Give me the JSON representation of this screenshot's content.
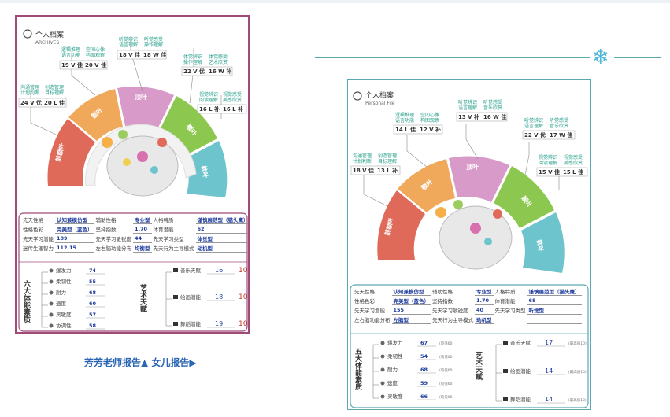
{
  "caption": "芳芳老师报告▲  女儿报告▶",
  "icons": {
    "snowflake": "snowflake-icon"
  },
  "card1": {
    "title": "个人档案",
    "subtitle": "ARCHIVES",
    "lobes": [
      "前额叶",
      "额叶",
      "顶叶",
      "颞叶",
      "枕叶"
    ],
    "lobe_subs": [
      "逻辑推理",
      "操作运动",
      "听觉语言",
      "视觉"
    ],
    "topics": [
      {
        "lines": [
          "沟通管理",
          "计划判断"
        ],
        "score": "24 V 优",
        "score2": "20 L 佳",
        "lines2": [
          "创造管理",
          "目标理解"
        ]
      },
      {
        "lines": [
          "逻辑推理",
          "语言功能"
        ],
        "score": "19 V 佳",
        "score2": "20 V 佳",
        "lines2": [
          "空间心像",
          "构图观察"
        ]
      },
      {
        "lines": [
          "听觉辨识",
          "语言理解"
        ],
        "score": "18 V 佳",
        "score2": "18 W 佳",
        "lines2": [
          "听觉感受",
          "操作理解"
        ]
      },
      {
        "lines": [
          "体觉辨识",
          "操作理解"
        ],
        "score": "22 V 优",
        "score2": "16 W 补",
        "lines2": [
          "体觉感受",
          "艺术欣赏"
        ]
      },
      {
        "lines": [
          "视觉辨识",
          "阅读理解"
        ],
        "score": "16 L 补",
        "score2": "16 L 补",
        "lines2": [
          "视觉感受",
          "美感欣赏"
        ]
      }
    ],
    "info": [
      [
        "先天性格",
        "认知兼模仿型",
        "辅助性格",
        "专业型",
        "人格特质",
        "谨慎展范型（猫头鹰）"
      ],
      [
        "性格色彩",
        "完美型（蓝色）",
        "坚持指数",
        "1.70",
        "体育潜能",
        "62"
      ],
      [
        "先天学习潜能",
        "189",
        "先天学习敏锐度",
        "44",
        "先天学习类型",
        "体觉型"
      ],
      [
        "迷传生理智力",
        "112.15",
        "左右脑功能分布",
        "均衡型",
        "先天行为主导模式",
        "动机型"
      ]
    ],
    "six_title": "六大体能素质",
    "six": [
      [
        "爆发力",
        "74"
      ],
      [
        "柔韧性",
        "55"
      ],
      [
        "耐力",
        "68"
      ],
      [
        "速度",
        "60"
      ],
      [
        "灵敏度",
        "57"
      ],
      [
        "协调性",
        "58"
      ]
    ],
    "art_title": "艺术天赋",
    "art": [
      [
        "音乐天赋",
        "16",
        "10"
      ],
      [
        "绘画潜能",
        "18",
        "10"
      ],
      [
        "舞蹈潜能",
        "19",
        "10"
      ]
    ]
  },
  "card2": {
    "title": "个人档案",
    "subtitle": "Personal File",
    "topics": [
      {
        "lines": [
          "沟通管理",
          "计划判断"
        ],
        "score": "18 V 佳",
        "score2": "13 L 补",
        "lines2": [
          "创造管理",
          "目标理解"
        ]
      },
      {
        "lines": [
          "逻辑推理",
          "语言功能"
        ],
        "score": "14 L 佳",
        "score2": "12 V 补",
        "lines2": [
          "空间心像",
          "构图观察"
        ]
      },
      {
        "lines": [
          "听觉辨识",
          "语言理解"
        ],
        "score": "13 V 补",
        "score2": "16 W 佳",
        "lines2": [
          "听觉感受",
          "音乐欣赏"
        ]
      },
      {
        "lines": [
          "听觉辨识",
          "语言理解"
        ],
        "score": "22 V 优",
        "score2": "17 W 佳",
        "lines2": [
          "听觉感受",
          "音乐欣赏"
        ]
      },
      {
        "lines": [
          "视觉辨识",
          "阅读理解"
        ],
        "score": "15 V 佳",
        "score2": "15 L 佳",
        "lines2": [
          "视觉感受",
          "美感欣赏"
        ]
      }
    ],
    "info": [
      [
        "先天性格",
        "认知兼模仿型",
        "辅助性格",
        "专业型",
        "人格特质",
        "谨慎展范型（猫头鹰）"
      ],
      [
        "性格色彩",
        "完美型（蓝色）",
        "坚持指数",
        "1.70",
        "体育潜能",
        "68"
      ],
      [
        "先天学习潜能",
        "155",
        "先天学习敏锐度",
        "40",
        "先天学习类型",
        "听觉型"
      ],
      [
        "左右脑功能分布",
        "左脑型",
        "先天行为主导模式",
        "动机型",
        "",
        ""
      ]
    ],
    "six_title": "五大体能素质",
    "six": [
      [
        "爆发力",
        "67",
        "(均值60)"
      ],
      [
        "柔韧性",
        "54",
        "(均值60)"
      ],
      [
        "耐力",
        "68",
        "(均值60)"
      ],
      [
        "速度",
        "59",
        "(均值60)"
      ],
      [
        "灵敏度",
        "66",
        "(均值60)"
      ]
    ],
    "art_title": "艺术天赋",
    "art": [
      [
        "音乐天赋",
        "17",
        "(最高值10)"
      ],
      [
        "绘画潜能",
        "14",
        "(最高值10)"
      ],
      [
        "舞蹈潜能",
        "14",
        "(最高值10)"
      ]
    ]
  }
}
